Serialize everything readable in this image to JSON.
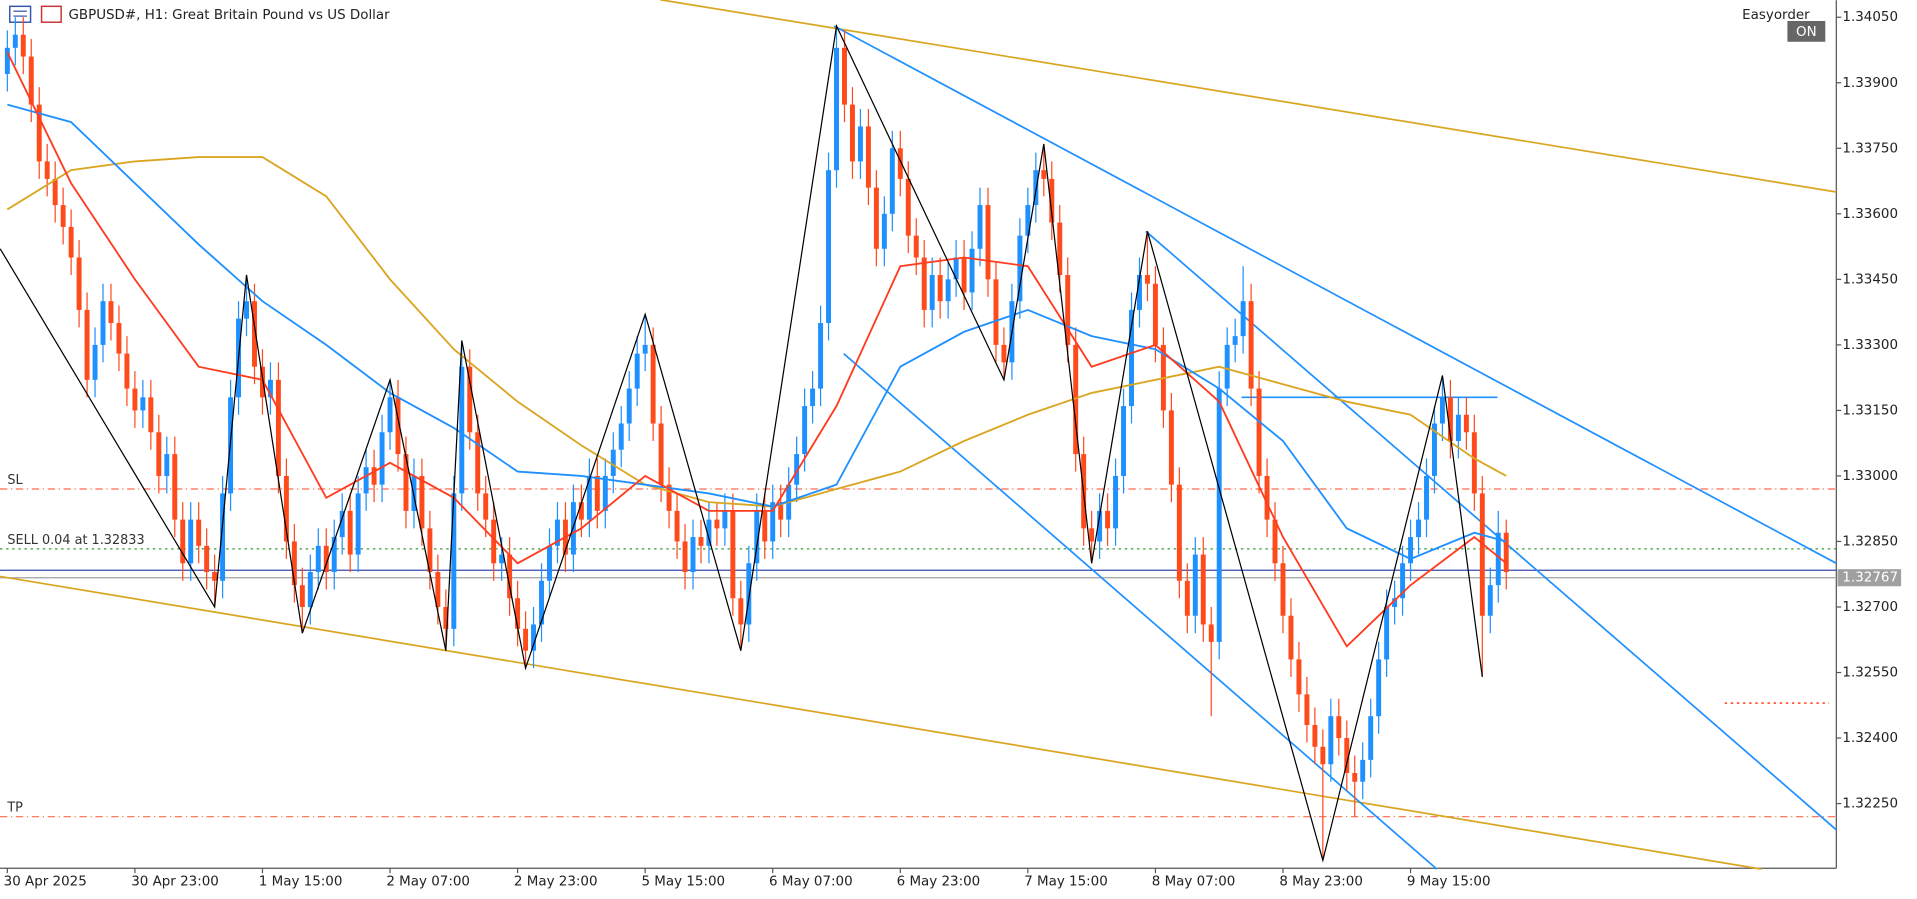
{
  "chart_data": {
    "type": "candlestick",
    "title": "GBPUSD#, H1:  Great Britain Pound vs US Dollar",
    "panel_title": "Easyorder",
    "panel_button": "ON",
    "up_color": "#1e90ff",
    "down_color": "#ff4a1c",
    "xlim": [
      -0.92,
      229.4
    ],
    "ylim": [
      1.32102,
      1.34089
    ],
    "yticks": [
      {
        "value": 1.3405,
        "label": "1.34050"
      },
      {
        "value": 1.339,
        "label": "1.33900"
      },
      {
        "value": 1.3375,
        "label": "1.33750"
      },
      {
        "value": 1.336,
        "label": "1.33600"
      },
      {
        "value": 1.3345,
        "label": "1.33450"
      },
      {
        "value": 1.333,
        "label": "1.33300"
      },
      {
        "value": 1.3315,
        "label": "1.33150"
      },
      {
        "value": 1.33,
        "label": "1.33000"
      },
      {
        "value": 1.3285,
        "label": "1.32850"
      },
      {
        "value": 1.327,
        "label": "1.32700"
      },
      {
        "value": 1.3255,
        "label": "1.32550"
      },
      {
        "value": 1.324,
        "label": "1.32400"
      },
      {
        "value": 1.3225,
        "label": "1.32250"
      }
    ],
    "categories": [
      "30 Apr 2025",
      null,
      null,
      null,
      null,
      null,
      null,
      null,
      null,
      null,
      null,
      null,
      null,
      null,
      null,
      null,
      "30 Apr 23:00",
      null,
      null,
      null,
      null,
      null,
      null,
      null,
      null,
      null,
      null,
      null,
      null,
      null,
      null,
      null,
      "1 May 15:00",
      null,
      null,
      null,
      null,
      null,
      null,
      null,
      null,
      null,
      null,
      null,
      null,
      null,
      null,
      null,
      "2 May 07:00",
      null,
      null,
      null,
      null,
      null,
      null,
      null,
      null,
      null,
      null,
      null,
      null,
      null,
      null,
      null,
      "2 May 23:00",
      null,
      null,
      null,
      null,
      null,
      null,
      null,
      null,
      null,
      null,
      null,
      null,
      null,
      null,
      null,
      "5 May 15:00",
      null,
      null,
      null,
      null,
      null,
      null,
      null,
      null,
      null,
      null,
      null,
      null,
      null,
      null,
      null,
      "6 May 07:00",
      null,
      null,
      null,
      null,
      null,
      null,
      null,
      null,
      null,
      null,
      null,
      null,
      null,
      null,
      null,
      "6 May 23:00",
      null,
      null,
      null,
      null,
      null,
      null,
      null,
      null,
      null,
      null,
      null,
      null,
      null,
      null,
      null,
      "7 May 15:00",
      null,
      null,
      null,
      null,
      null,
      null,
      null,
      null,
      null,
      null,
      null,
      null,
      null,
      null,
      null,
      "8 May 07:00",
      null,
      null,
      null,
      null,
      null,
      null,
      null,
      null,
      null,
      null,
      null,
      null,
      null,
      null,
      null,
      "8 May 23:00",
      null,
      null,
      null,
      null,
      null,
      null,
      null,
      null,
      null,
      null,
      null,
      null,
      null,
      null,
      null,
      "9 May 15:00",
      null,
      null,
      null,
      null,
      null,
      null,
      null,
      null,
      null,
      null,
      null,
      null
    ],
    "open": [
      1.3392,
      1.3398,
      1.3401,
      1.3396,
      1.3385,
      1.3372,
      1.3368,
      1.3362,
      1.3357,
      1.335,
      1.3338,
      1.3322,
      1.333,
      1.334,
      1.3335,
      1.3328,
      1.332,
      1.3315,
      1.3318,
      1.331,
      1.33,
      1.3305,
      1.329,
      1.328,
      1.329,
      1.3284,
      1.3278,
      1.3276,
      1.3296,
      1.3318,
      1.3336,
      1.334,
      1.3325,
      1.3318,
      1.3322,
      1.33,
      1.3285,
      1.3275,
      1.327,
      1.3278,
      1.3284,
      1.3278,
      1.3286,
      1.3292,
      1.3282,
      1.3296,
      1.3302,
      1.3298,
      1.331,
      1.3318,
      1.3305,
      1.3292,
      1.33,
      1.3288,
      1.3278,
      1.327,
      1.3265,
      1.3296,
      1.3325,
      1.331,
      1.3296,
      1.329,
      1.328,
      1.3282,
      1.3272,
      1.3265,
      1.326,
      1.3266,
      1.3276,
      1.3284,
      1.329,
      1.3282,
      1.3294,
      1.329,
      1.33,
      1.3292,
      1.33,
      1.3306,
      1.3312,
      1.332,
      1.3328,
      1.333,
      1.3312,
      1.3298,
      1.3292,
      1.3285,
      1.3278,
      1.3286,
      1.3284,
      1.329,
      1.3288,
      1.3292,
      1.3272,
      1.3266,
      1.328,
      1.3292,
      1.3285,
      1.3294,
      1.329,
      1.3298,
      1.3305,
      1.3316,
      1.332,
      1.3335,
      1.337,
      1.3398,
      1.3385,
      1.3372,
      1.338,
      1.3366,
      1.3352,
      1.336,
      1.3375,
      1.3368,
      1.3355,
      1.335,
      1.3338,
      1.3346,
      1.334,
      1.3345,
      1.335,
      1.3342,
      1.3352,
      1.3362,
      1.3345,
      1.333,
      1.3326,
      1.334,
      1.3355,
      1.3362,
      1.337,
      1.3368,
      1.3358,
      1.3346,
      1.333,
      1.3305,
      1.3288,
      1.3285,
      1.3292,
      1.3288,
      1.33,
      1.3316,
      1.3338,
      1.3346,
      1.3344,
      1.333,
      1.3315,
      1.3298,
      1.3276,
      1.3268,
      1.3282,
      1.3266,
      1.3262,
      1.332,
      1.333,
      1.3332,
      1.334,
      1.332,
      1.33,
      1.329,
      1.328,
      1.3268,
      1.3258,
      1.325,
      1.3243,
      1.3238,
      1.3234,
      1.3245,
      1.324,
      1.3232,
      1.323,
      1.3235,
      1.3245,
      1.3258,
      1.327,
      1.3272,
      1.328,
      1.3286,
      1.329,
      1.33,
      1.3312,
      1.3318,
      1.3308,
      1.3314,
      1.331,
      1.3296,
      1.3268,
      1.3275,
      1.3287
    ],
    "high": [
      1.3402,
      1.3405,
      1.3405,
      1.34,
      1.3389,
      1.3376,
      1.3372,
      1.3366,
      1.3361,
      1.3354,
      1.3342,
      1.3334,
      1.3344,
      1.3344,
      1.3339,
      1.3332,
      1.3324,
      1.3322,
      1.3322,
      1.3314,
      1.3309,
      1.3309,
      1.3294,
      1.3294,
      1.3294,
      1.3288,
      1.3282,
      1.33,
      1.3322,
      1.334,
      1.3346,
      1.3344,
      1.3329,
      1.3326,
      1.3326,
      1.3304,
      1.3289,
      1.3279,
      1.3282,
      1.3288,
      1.3288,
      1.329,
      1.3296,
      1.3296,
      1.33,
      1.3306,
      1.3306,
      1.3314,
      1.3322,
      1.3322,
      1.3309,
      1.3304,
      1.3304,
      1.3292,
      1.3282,
      1.3274,
      1.33,
      1.3331,
      1.3329,
      1.3314,
      1.33,
      1.3294,
      1.3286,
      1.3286,
      1.3276,
      1.3269,
      1.327,
      1.328,
      1.3288,
      1.3294,
      1.3294,
      1.3298,
      1.3298,
      1.3304,
      1.3304,
      1.3304,
      1.331,
      1.3316,
      1.3324,
      1.3332,
      1.3337,
      1.3334,
      1.3316,
      1.3302,
      1.3296,
      1.3289,
      1.329,
      1.329,
      1.3294,
      1.3294,
      1.3296,
      1.3296,
      1.3276,
      1.3284,
      1.3296,
      1.3296,
      1.3298,
      1.3298,
      1.3302,
      1.3309,
      1.332,
      1.3324,
      1.3339,
      1.3374,
      1.3403,
      1.3402,
      1.3389,
      1.3384,
      1.3384,
      1.337,
      1.3364,
      1.3379,
      1.3379,
      1.3372,
      1.3359,
      1.3354,
      1.335,
      1.335,
      1.3349,
      1.3354,
      1.3354,
      1.3356,
      1.3366,
      1.3366,
      1.3349,
      1.3334,
      1.3344,
      1.3359,
      1.3366,
      1.3374,
      1.3376,
      1.3372,
      1.3362,
      1.335,
      1.3334,
      1.3309,
      1.3292,
      1.3296,
      1.3296,
      1.3304,
      1.332,
      1.3342,
      1.335,
      1.3356,
      1.3348,
      1.3334,
      1.3319,
      1.3302,
      1.328,
      1.3286,
      1.3286,
      1.327,
      1.3324,
      1.3334,
      1.3336,
      1.3348,
      1.3344,
      1.3324,
      1.3304,
      1.3294,
      1.3284,
      1.3272,
      1.3262,
      1.3254,
      1.3247,
      1.3242,
      1.3249,
      1.3249,
      1.3244,
      1.3236,
      1.3239,
      1.3249,
      1.3262,
      1.3274,
      1.3276,
      1.3284,
      1.329,
      1.3294,
      1.3304,
      1.3316,
      1.3323,
      1.3322,
      1.3318,
      1.3318,
      1.3314,
      1.33,
      1.3279,
      1.3292,
      1.329
    ],
    "low": [
      1.3388,
      1.3394,
      1.3392,
      1.3381,
      1.3368,
      1.3364,
      1.3358,
      1.3353,
      1.3346,
      1.3334,
      1.3318,
      1.3318,
      1.3326,
      1.3331,
      1.3324,
      1.3316,
      1.3311,
      1.3311,
      1.3306,
      1.3296,
      1.3296,
      1.3286,
      1.3276,
      1.3276,
      1.328,
      1.3274,
      1.327,
      1.3272,
      1.3292,
      1.3314,
      1.3332,
      1.3321,
      1.3314,
      1.3314,
      1.3296,
      1.3281,
      1.3271,
      1.3264,
      1.3266,
      1.3274,
      1.3274,
      1.3274,
      1.3282,
      1.3278,
      1.3278,
      1.3292,
      1.3294,
      1.3294,
      1.3306,
      1.3301,
      1.3288,
      1.3288,
      1.3284,
      1.3274,
      1.3266,
      1.326,
      1.3261,
      1.3292,
      1.3306,
      1.3292,
      1.3286,
      1.3276,
      1.3276,
      1.3268,
      1.3261,
      1.3256,
      1.3256,
      1.3262,
      1.3272,
      1.328,
      1.3278,
      1.3278,
      1.3286,
      1.3286,
      1.3288,
      1.3288,
      1.3296,
      1.3302,
      1.3308,
      1.3316,
      1.3324,
      1.3308,
      1.3294,
      1.3288,
      1.3281,
      1.3274,
      1.3274,
      1.328,
      1.328,
      1.3284,
      1.3284,
      1.3268,
      1.326,
      1.3262,
      1.3276,
      1.3281,
      1.3281,
      1.3286,
      1.3286,
      1.3294,
      1.3301,
      1.3312,
      1.3316,
      1.3331,
      1.3366,
      1.3381,
      1.3368,
      1.3368,
      1.3362,
      1.3348,
      1.3348,
      1.3356,
      1.3364,
      1.3351,
      1.3346,
      1.3334,
      1.3334,
      1.3336,
      1.3336,
      1.3341,
      1.3338,
      1.3338,
      1.3348,
      1.3341,
      1.3326,
      1.3322,
      1.3322,
      1.3336,
      1.3351,
      1.3358,
      1.3364,
      1.3354,
      1.3342,
      1.3326,
      1.3301,
      1.3284,
      1.328,
      1.3281,
      1.3284,
      1.3284,
      1.3296,
      1.3312,
      1.3334,
      1.334,
      1.3326,
      1.3311,
      1.3294,
      1.3272,
      1.3264,
      1.3264,
      1.3262,
      1.3245,
      1.3258,
      1.3316,
      1.3326,
      1.3328,
      1.3316,
      1.3296,
      1.3286,
      1.3276,
      1.3264,
      1.3254,
      1.3246,
      1.3239,
      1.3234,
      1.3212,
      1.323,
      1.3236,
      1.3228,
      1.3222,
      1.3226,
      1.3231,
      1.3241,
      1.3254,
      1.3266,
      1.3268,
      1.3276,
      1.3282,
      1.3286,
      1.3296,
      1.3308,
      1.3304,
      1.3304,
      1.3306,
      1.3292,
      1.3254,
      1.3264,
      1.3271,
      1.3274
    ],
    "close": [
      1.3398,
      1.3401,
      1.3396,
      1.3385,
      1.3372,
      1.3368,
      1.3362,
      1.3357,
      1.335,
      1.3338,
      1.3322,
      1.333,
      1.334,
      1.3335,
      1.3328,
      1.332,
      1.3315,
      1.3318,
      1.331,
      1.33,
      1.3305,
      1.329,
      1.328,
      1.329,
      1.3284,
      1.3278,
      1.3276,
      1.3296,
      1.3318,
      1.3336,
      1.334,
      1.3325,
      1.3318,
      1.3322,
      1.33,
      1.3285,
      1.3275,
      1.327,
      1.3278,
      1.3284,
      1.3278,
      1.3286,
      1.3292,
      1.3282,
      1.3296,
      1.3302,
      1.3298,
      1.331,
      1.3318,
      1.3305,
      1.3292,
      1.33,
      1.3288,
      1.3278,
      1.327,
      1.3265,
      1.3296,
      1.3325,
      1.331,
      1.3296,
      1.329,
      1.328,
      1.3282,
      1.3272,
      1.3265,
      1.326,
      1.3266,
      1.3276,
      1.3284,
      1.329,
      1.3282,
      1.3294,
      1.329,
      1.33,
      1.3292,
      1.33,
      1.3306,
      1.3312,
      1.332,
      1.3328,
      1.333,
      1.3312,
      1.3298,
      1.3292,
      1.3285,
      1.3278,
      1.3286,
      1.3284,
      1.329,
      1.3288,
      1.3292,
      1.3272,
      1.3266,
      1.328,
      1.3292,
      1.3285,
      1.3294,
      1.329,
      1.3298,
      1.3305,
      1.3316,
      1.332,
      1.3335,
      1.337,
      1.3398,
      1.3385,
      1.3372,
      1.338,
      1.3366,
      1.3352,
      1.336,
      1.3375,
      1.3368,
      1.3355,
      1.335,
      1.3338,
      1.3346,
      1.334,
      1.3345,
      1.335,
      1.3342,
      1.3352,
      1.3362,
      1.3345,
      1.333,
      1.3326,
      1.334,
      1.3355,
      1.3362,
      1.337,
      1.3368,
      1.3358,
      1.3346,
      1.333,
      1.3305,
      1.3288,
      1.3285,
      1.3292,
      1.3288,
      1.33,
      1.3316,
      1.3338,
      1.3346,
      1.3344,
      1.333,
      1.3315,
      1.3298,
      1.3276,
      1.3268,
      1.3282,
      1.3266,
      1.3262,
      1.332,
      1.333,
      1.3332,
      1.334,
      1.332,
      1.33,
      1.329,
      1.328,
      1.3268,
      1.3258,
      1.325,
      1.3243,
      1.3238,
      1.3234,
      1.3245,
      1.324,
      1.3232,
      1.323,
      1.3235,
      1.3245,
      1.3258,
      1.327,
      1.3272,
      1.328,
      1.3286,
      1.329,
      1.33,
      1.3312,
      1.3318,
      1.3308,
      1.3314,
      1.331,
      1.3296,
      1.3268,
      1.3275,
      1.3287,
      1.3278
    ],
    "series": [
      {
        "color": "#daa520",
        "x": [
          0,
          8,
          16,
          24,
          32,
          40,
          48,
          56,
          64,
          72,
          80,
          88,
          96,
          104,
          112,
          120,
          128,
          136,
          144,
          152,
          160,
          168,
          176,
          184,
          188
        ],
        "values": [
          1.3361,
          1.337,
          1.3372,
          1.3373,
          1.3373,
          1.3364,
          1.3345,
          1.3329,
          1.3317,
          1.3307,
          1.3298,
          1.3294,
          1.3293,
          1.3297,
          1.3301,
          1.3308,
          1.3314,
          1.3319,
          1.3322,
          1.3325,
          1.3321,
          1.3317,
          1.3314,
          1.3304,
          1.33
        ]
      },
      {
        "color": "#1e90ff",
        "x": [
          0,
          8,
          16,
          24,
          32,
          40,
          48,
          56,
          64,
          72,
          80,
          88,
          96,
          104,
          112,
          120,
          128,
          136,
          144,
          152,
          160,
          168,
          176,
          184,
          188
        ],
        "values": [
          1.3385,
          1.3381,
          1.3367,
          1.3353,
          1.334,
          1.333,
          1.3319,
          1.3311,
          1.3301,
          1.33,
          1.3298,
          1.3296,
          1.3293,
          1.3298,
          1.3325,
          1.3333,
          1.3338,
          1.3332,
          1.3329,
          1.332,
          1.3308,
          1.3288,
          1.3281,
          1.3287,
          1.3285
        ]
      },
      {
        "color": "#ff3b1f",
        "x": [
          0,
          8,
          16,
          24,
          32,
          40,
          48,
          56,
          64,
          72,
          80,
          88,
          96,
          104,
          112,
          120,
          128,
          136,
          144,
          152,
          160,
          168,
          176,
          184,
          188
        ],
        "values": [
          1.3397,
          1.3367,
          1.3345,
          1.3325,
          1.3322,
          1.3295,
          1.3303,
          1.3295,
          1.328,
          1.3288,
          1.33,
          1.3292,
          1.3292,
          1.3316,
          1.3348,
          1.335,
          1.3348,
          1.3325,
          1.333,
          1.3317,
          1.3286,
          1.3261,
          1.3275,
          1.3286,
          1.328
        ]
      }
    ],
    "zigzag": {
      "color": "#000000",
      "x": [
        -0.9,
        26,
        30,
        37,
        48,
        55,
        57,
        65,
        80,
        92,
        104,
        125,
        130,
        136,
        143,
        165,
        180,
        185
      ],
      "values": [
        1.3352,
        1.327,
        1.3346,
        1.3264,
        1.3322,
        1.326,
        1.3331,
        1.3256,
        1.3337,
        1.326,
        1.3403,
        1.3322,
        1.3376,
        1.328,
        1.3356,
        1.3212,
        1.3323,
        1.3254
      ]
    },
    "lines": [
      {
        "color": "#daa520",
        "x": [
          81.9,
          229.4
        ],
        "values": [
          1.3409,
          1.3365
        ]
      },
      {
        "color": "#daa520",
        "x": [
          -0.9,
          220.0
        ],
        "values": [
          1.3277,
          1.321
        ]
      },
      {
        "color": "#1e90ff",
        "x": [
          103.7,
          229.4
        ],
        "values": [
          1.3403,
          1.328
        ]
      },
      {
        "color": "#1e90ff",
        "x": [
          142.8,
          229.4
        ],
        "values": [
          1.3356,
          1.3219
        ]
      },
      {
        "color": "#1e90ff",
        "x": [
          104.9,
          179.3
        ],
        "values": [
          1.3328,
          1.321
        ]
      },
      {
        "color": "#1e90ff",
        "x": [
          154.8,
          186.9
        ],
        "values": [
          1.3318,
          1.3318
        ]
      },
      {
        "color": "#ff5a3c",
        "x": [
          215.4,
          228.5
        ],
        "values": [
          1.3248,
          1.3248
        ],
        "style": "dotted"
      }
    ],
    "levels": [
      {
        "label": "SL",
        "value": 1.3297,
        "color": "#ff6a4d",
        "style": "dashdot"
      },
      {
        "label": "SELL 0.04 at 1.32833",
        "value": 1.32833,
        "color": "#3a9a3a",
        "style": "dotted"
      },
      {
        "label": "TP",
        "value": 1.3222,
        "color": "#ff6a4d",
        "style": "dashdot"
      }
    ],
    "ask": 1.32784,
    "ask_color": "#3949ab",
    "bid": 1.32767,
    "bid_color": "#a0a0a0"
  }
}
